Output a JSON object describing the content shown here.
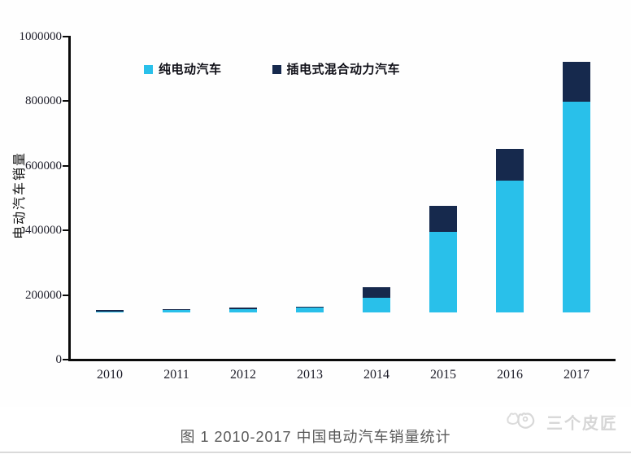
{
  "chart_data": {
    "type": "bar",
    "stacked": true,
    "categories": [
      "2010",
      "2011",
      "2012",
      "2013",
      "2014",
      "2015",
      "2016",
      "2017"
    ],
    "series": [
      {
        "name": "纯电动汽车",
        "color": "#29c0ea",
        "values": [
          3000,
          8000,
          11000,
          15000,
          45000,
          250000,
          409000,
          652000
        ]
      },
      {
        "name": "插电式混合动力汽车",
        "color": "#16294d",
        "values": [
          5000,
          3000,
          3000,
          3000,
          33000,
          80000,
          98000,
          125000
        ]
      }
    ],
    "title": "",
    "xlabel": "",
    "ylabel": "电动汽车销量",
    "ylim": [
      0,
      1000000
    ],
    "yticks": [
      0,
      200000,
      400000,
      600000,
      800000,
      1000000
    ],
    "grid": false,
    "legend_position": "top"
  },
  "caption": "图 1 2010-2017 中国电动汽车销量统计",
  "watermark": {
    "text": "三个皮匠",
    "logo_icon": "cat-doodle-icon"
  },
  "colors": {
    "pure_ev": "#29c0ea",
    "phev": "#16294d",
    "axis": "#0a0a0a",
    "caption_text": "#595959",
    "watermark_text": "#d6d6d6",
    "divider": "#dadada"
  }
}
